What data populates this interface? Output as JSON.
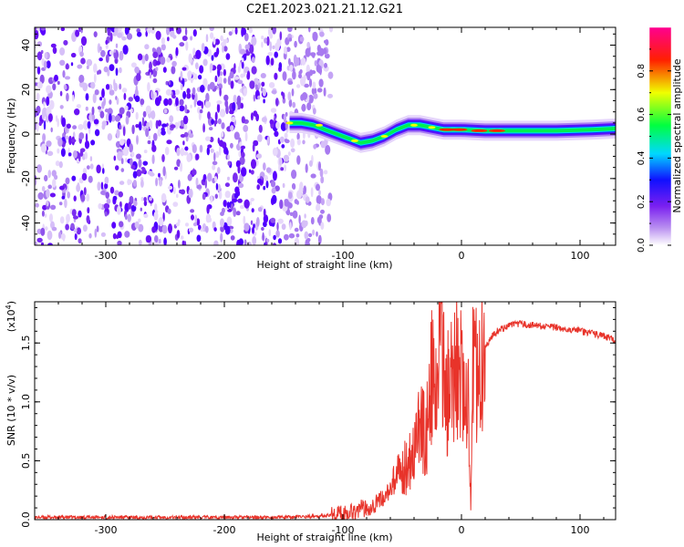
{
  "title": "C2E1.2023.021.21.12.G21",
  "chart_data": [
    {
      "type": "heatmap",
      "name": "spectrogram",
      "xlabel": "Height of straight line (km)",
      "ylabel": "Frequency (Hz)",
      "xlim": [
        -360,
        130
      ],
      "ylim": [
        -50,
        48
      ],
      "x_ticks": [
        -300,
        -200,
        -100,
        0,
        100
      ],
      "x_tick_labels": [
        "-300",
        "-200",
        "-100",
        "0",
        "100"
      ],
      "y_ticks": [
        -40,
        -20,
        0,
        20,
        40
      ],
      "y_tick_labels": [
        "-40",
        "-20",
        "0",
        "20",
        "40"
      ],
      "colorbar": {
        "label": "Normalized spectral amplitude",
        "range": [
          0,
          1
        ],
        "ticks": [
          0.0,
          0.2,
          0.4,
          0.6,
          0.8
        ],
        "tick_labels": [
          "0.0",
          "0.2",
          "0.4",
          "0.6",
          "0.8"
        ],
        "colors": [
          "#ffffff",
          "#8a2be2",
          "#0000ff",
          "#00ffff",
          "#00ff00",
          "#ffff00",
          "#ff0000",
          "#ff00aa"
        ]
      },
      "noise_region": {
        "x_range": [
          -360,
          -110
        ],
        "freq_range": [
          -50,
          48
        ]
      },
      "signal_ridge": {
        "x": [
          -145,
          -135,
          -125,
          -115,
          -105,
          -95,
          -85,
          -75,
          -65,
          -55,
          -45,
          -35,
          -25,
          -15,
          -5,
          0,
          20,
          50,
          80,
          110,
          130
        ],
        "freq": [
          5,
          5,
          4,
          2,
          0,
          -2,
          -4,
          -3,
          -1,
          2,
          4,
          4,
          3,
          2,
          2,
          2,
          1.5,
          1.5,
          1.5,
          2,
          2.5
        ]
      }
    },
    {
      "type": "line",
      "name": "snr",
      "xlabel": "Height of straight line (km)",
      "ylabel": "SNR (10 * v/v)",
      "y_multiplier": "(x10^4)",
      "xlim": [
        -360,
        130
      ],
      "ylim": [
        0,
        1.85
      ],
      "x_ticks": [
        -300,
        -200,
        -100,
        0,
        100
      ],
      "x_tick_labels": [
        "-300",
        "-200",
        "-100",
        "0",
        "100"
      ],
      "y_ticks": [
        0.0,
        0.5,
        1.0,
        1.5
      ],
      "y_tick_labels": [
        "0.0",
        "0.5",
        "1.0",
        "1.5"
      ],
      "color": "#e8332a",
      "series": [
        {
          "x": [
            -360,
            -300,
            -200,
            -150,
            -120,
            -100,
            -90,
            -80,
            -70,
            -60,
            -50,
            -40,
            -35,
            -30,
            -25,
            -20,
            -18,
            -15,
            -12,
            -10,
            -7,
            -5,
            -2,
            0,
            2,
            5,
            8,
            10,
            12,
            15,
            20,
            25,
            30,
            40,
            50,
            60,
            70,
            80,
            90,
            100,
            110,
            120,
            130
          ],
          "y": [
            0.02,
            0.02,
            0.02,
            0.02,
            0.03,
            0.05,
            0.08,
            0.1,
            0.15,
            0.25,
            0.4,
            0.6,
            0.8,
            0.7,
            1.2,
            1.0,
            1.85,
            1.3,
            0.9,
            1.5,
            1.1,
            1.6,
            1.1,
            1.3,
            1.0,
            1.2,
            0.1,
            1.5,
            1.25,
            1.35,
            1.45,
            1.55,
            1.6,
            1.65,
            1.66,
            1.65,
            1.64,
            1.63,
            1.62,
            1.6,
            1.58,
            1.56,
            1.52
          ]
        }
      ]
    }
  ]
}
